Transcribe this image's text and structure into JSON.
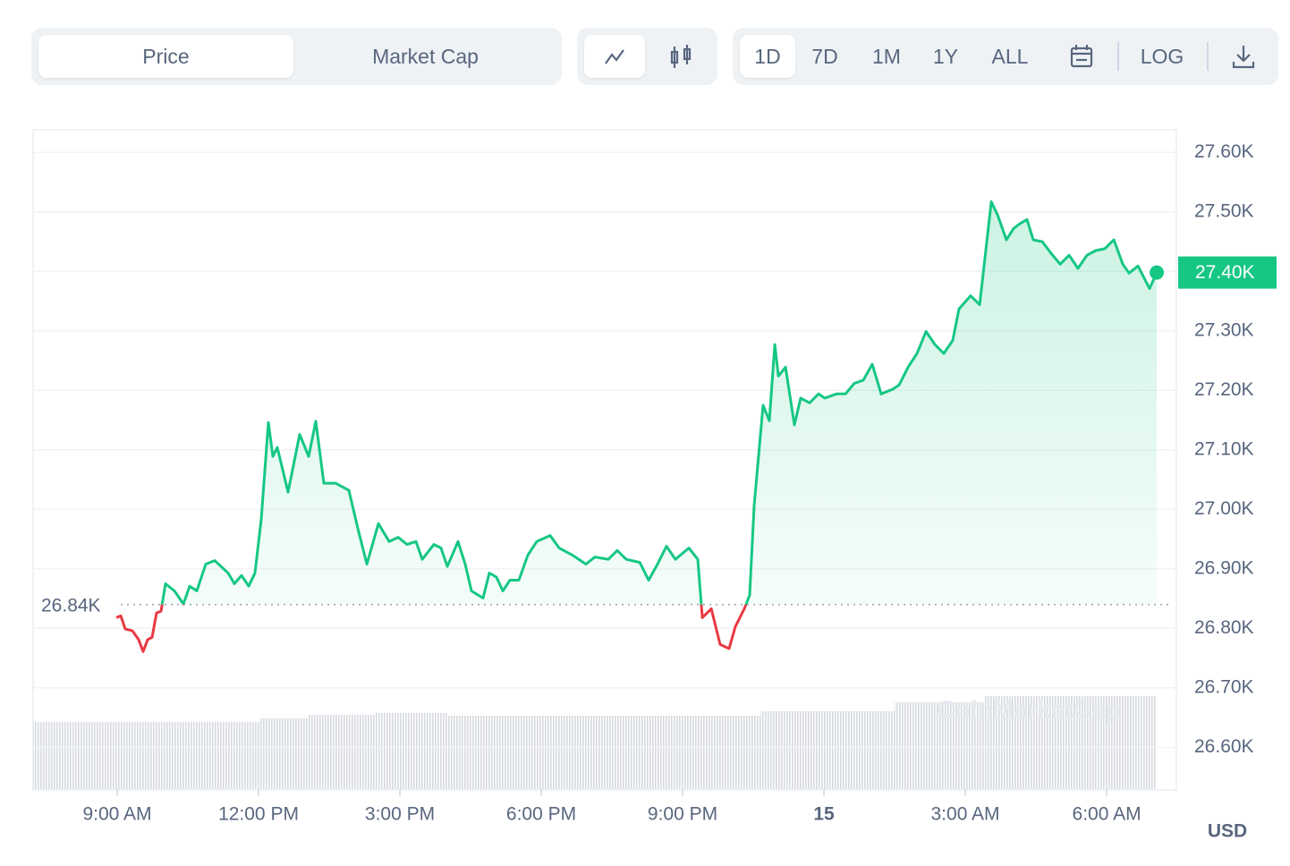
{
  "toolbar": {
    "tabs": [
      "Price",
      "Market Cap"
    ],
    "active_tab": 0,
    "ranges": [
      "1D",
      "7D",
      "1M",
      "1Y",
      "ALL"
    ],
    "active_range": 0,
    "log": "LOG"
  },
  "chart_data": {
    "type": "line",
    "currency": "USD",
    "watermark": "CoinMarketCap",
    "x": [
      8.981,
      9.076,
      9.171,
      9.323,
      9.456,
      9.551,
      9.646,
      9.741,
      9.835,
      9.93,
      10.025,
      10.215,
      10.405,
      10.538,
      10.69,
      10.88,
      11.07,
      11.354,
      11.487,
      11.639,
      11.791,
      11.924,
      12.057,
      12.209,
      12.304,
      12.399,
      12.627,
      12.873,
      13.063,
      13.215,
      13.386,
      13.633,
      13.918,
      14.108,
      14.298,
      14.544,
      14.772,
      14.962,
      15.152,
      15.342,
      15.475,
      15.722,
      15.873,
      16.006,
      16.234,
      16.386,
      16.519,
      16.766,
      16.899,
      17.051,
      17.184,
      17.335,
      17.525,
      17.715,
      17.905,
      18.19,
      18.38,
      18.665,
      18.949,
      19.139,
      19.424,
      19.614,
      19.804,
      20.089,
      20.279,
      20.468,
      20.658,
      20.848,
      21.133,
      21.323,
      21.418,
      21.608,
      21.797,
      21.987,
      22.12,
      22.31,
      22.424,
      22.519,
      22.709,
      22.842,
      22.956,
      23.032,
      23.184,
      23.373,
      23.506,
      23.696,
      23.886,
      24.019,
      24.266,
      24.456,
      24.646,
      24.835,
      25.025,
      25.215,
      25.462,
      25.595,
      25.785,
      25.975,
      26.165,
      26.354,
      26.544,
      26.734,
      26.867,
      27.114,
      27.304,
      27.551,
      27.684,
      27.873,
      28.025,
      28.158,
      28.31,
      28.443,
      28.633,
      28.823,
      29.013,
      29.203,
      29.392,
      29.582,
      29.772,
      29.962,
      30.152,
      30.342,
      30.475,
      30.665,
      30.911,
      31.063
    ],
    "series": [
      {
        "name": "Price",
        "color": "#16c784",
        "below_color": "#ea3943",
        "values": [
          26818,
          26821,
          26799,
          26796,
          26781,
          26761,
          26781,
          26785,
          26826,
          26829,
          26875,
          26863,
          26841,
          26871,
          26863,
          26908,
          26914,
          26893,
          26875,
          26889,
          26871,
          26893,
          26983,
          27146,
          27089,
          27104,
          27029,
          27126,
          27089,
          27148,
          27044,
          27044,
          27032,
          26968,
          26908,
          26976,
          26946,
          26953,
          26941,
          26946,
          26916,
          26941,
          26935,
          26904,
          26946,
          26908,
          26863,
          26851,
          26893,
          26886,
          26863,
          26881,
          26881,
          26923,
          26946,
          26956,
          26935,
          26923,
          26908,
          26920,
          26916,
          26931,
          26916,
          26911,
          26881,
          26908,
          26938,
          26916,
          26935,
          26916,
          26818,
          26833,
          26773,
          26766,
          26803,
          26833,
          26856,
          27006,
          27175,
          27149,
          27277,
          27224,
          27239,
          27142,
          27187,
          27179,
          27194,
          27187,
          27194,
          27194,
          27212,
          27217,
          27244,
          27194,
          27202,
          27209,
          27239,
          27262,
          27299,
          27277,
          27262,
          27284,
          27337,
          27359,
          27344,
          27517,
          27495,
          27453,
          27472,
          27480,
          27487,
          27453,
          27450,
          27430,
          27412,
          27427,
          27405,
          27427,
          27435,
          27438,
          27453,
          27412,
          27397,
          27409,
          27371,
          27398
        ]
      }
    ],
    "current_price_label": "27.40K",
    "reference": {
      "value": 26840,
      "label": "26.84K"
    },
    "xlim": [
      7.215,
      31.48
    ],
    "xticks": [
      {
        "value": 9,
        "label": "9:00 AM"
      },
      {
        "value": 12,
        "label": "12:00 PM"
      },
      {
        "value": 15,
        "label": "3:00 PM"
      },
      {
        "value": 18,
        "label": "6:00 PM"
      },
      {
        "value": 21,
        "label": "9:00 PM"
      },
      {
        "value": 24,
        "label": "15"
      },
      {
        "value": 27,
        "label": "3:00 AM"
      },
      {
        "value": 30,
        "label": "6:00 AM"
      }
    ],
    "ylim": [
      26530,
      27638
    ],
    "yticks": [
      {
        "value": 26600,
        "label": "26.60K"
      },
      {
        "value": 26700,
        "label": "26.70K"
      },
      {
        "value": 26800,
        "label": "26.80K"
      },
      {
        "value": 26900,
        "label": "26.90K"
      },
      {
        "value": 27000,
        "label": "27.00K"
      },
      {
        "value": 27100,
        "label": "27.10K"
      },
      {
        "value": 27200,
        "label": "27.20K"
      },
      {
        "value": 27300,
        "label": "27.30K"
      },
      {
        "value": 27400,
        "label": "27.40K"
      },
      {
        "value": 27500,
        "label": "27.50K"
      },
      {
        "value": 27600,
        "label": "27.60K"
      }
    ],
    "grid": true
  }
}
